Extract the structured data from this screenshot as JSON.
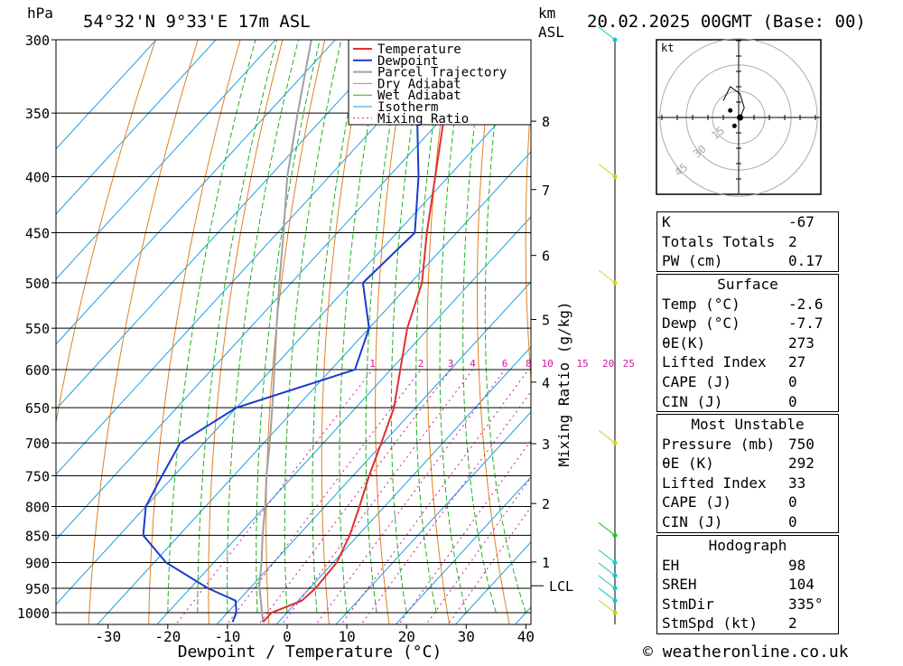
{
  "header": {
    "location": "54°32'N 9°33'E 17m ASL",
    "date": "20.02.2025 00GMT (Base: 00)",
    "pressure_unit": "hPa",
    "km_unit": "km",
    "asl_unit": "ASL"
  },
  "footer": {
    "credit": "© weatheronline.co.uk"
  },
  "chart_data": {
    "type": "skew-t",
    "xlabel": "Dewpoint / Temperature (°C)",
    "ylabel": "hPa",
    "mixing_ratio_label": "Mixing Ratio (g/kg)",
    "x_ticks": [
      -30,
      -20,
      -10,
      0,
      10,
      20,
      30,
      40
    ],
    "pressure_levels": [
      300,
      350,
      400,
      450,
      500,
      550,
      600,
      650,
      700,
      750,
      800,
      850,
      900,
      950,
      1000
    ],
    "km_ticks": [
      {
        "label": "8",
        "p": 356
      },
      {
        "label": "7",
        "p": 411
      },
      {
        "label": "6",
        "p": 472
      },
      {
        "label": "5",
        "p": 540
      },
      {
        "label": "4",
        "p": 616
      },
      {
        "label": "3",
        "p": 701
      },
      {
        "label": "2",
        "p": 795
      },
      {
        "label": "1",
        "p": 899
      }
    ],
    "lcl": {
      "label": "LCL",
      "p": 945
    },
    "mixing_ratio_values": [
      "1",
      "2",
      "3",
      "4",
      "6",
      "8",
      "10",
      "15",
      "20",
      "25"
    ],
    "legend": [
      "Temperature",
      "Dewpoint",
      "Parcel Trajectory",
      "Dry Adiabat",
      "Wet Adiabat",
      "Isotherm",
      "Mixing Ratio"
    ],
    "colors": {
      "temperature": "#e03030",
      "dewpoint": "#1a3ccc",
      "parcel": "#a0a0a0",
      "dry_adiabat": "#e08020",
      "wet_adiabat": "#20b020",
      "isotherm": "#1e9ee0",
      "mixing_ratio": "#cc1a99"
    },
    "temperature": [
      {
        "p": 1020,
        "t": -2.6
      },
      {
        "p": 1000,
        "t": -2.6
      },
      {
        "p": 975,
        "t": 0.6
      },
      {
        "p": 950,
        "t": 1.0
      },
      {
        "p": 900,
        "t": 0.6
      },
      {
        "p": 850,
        "t": -1.4
      },
      {
        "p": 800,
        "t": -4.2
      },
      {
        "p": 750,
        "t": -7.3
      },
      {
        "p": 700,
        "t": -10.3
      },
      {
        "p": 650,
        "t": -13.6
      },
      {
        "p": 600,
        "t": -18.4
      },
      {
        "p": 550,
        "t": -23.6
      },
      {
        "p": 500,
        "t": -28.1
      },
      {
        "p": 450,
        "t": -35.0
      },
      {
        "p": 400,
        "t": -42.2
      },
      {
        "p": 350,
        "t": -50.4
      },
      {
        "p": 300,
        "t": -58.9
      }
    ],
    "dewpoint": [
      {
        "p": 1020,
        "t": -7.7
      },
      {
        "p": 1000,
        "t": -8.5
      },
      {
        "p": 975,
        "t": -10.5
      },
      {
        "p": 950,
        "t": -17.0
      },
      {
        "p": 900,
        "t": -28.0
      },
      {
        "p": 850,
        "t": -36.0
      },
      {
        "p": 800,
        "t": -40.0
      },
      {
        "p": 750,
        "t": -42.0
      },
      {
        "p": 700,
        "t": -44.0
      },
      {
        "p": 650,
        "t": -40.0
      },
      {
        "p": 600,
        "t": -26.0
      },
      {
        "p": 550,
        "t": -30.0
      },
      {
        "p": 500,
        "t": -38.0
      },
      {
        "p": 450,
        "t": -37.0
      },
      {
        "p": 400,
        "t": -45.0
      },
      {
        "p": 350,
        "t": -55.0
      },
      {
        "p": 300,
        "t": -58.0
      }
    ],
    "parcel": [
      {
        "p": 1020,
        "t": -2.6
      },
      {
        "p": 945,
        "t": -8.8
      },
      {
        "p": 900,
        "t": -12.0
      },
      {
        "p": 850,
        "t": -16.0
      },
      {
        "p": 800,
        "t": -20.0
      },
      {
        "p": 750,
        "t": -24.5
      },
      {
        "p": 700,
        "t": -29.0
      },
      {
        "p": 650,
        "t": -34.0
      },
      {
        "p": 600,
        "t": -39.5
      },
      {
        "p": 550,
        "t": -45.5
      },
      {
        "p": 500,
        "t": -52.0
      },
      {
        "p": 450,
        "t": -59.0
      },
      {
        "p": 400,
        "t": -67.0
      },
      {
        "p": 350,
        "t": -75.0
      },
      {
        "p": 300,
        "t": -84.0
      }
    ],
    "hodograph": {
      "unit": "kt",
      "ring_labels": [
        "15",
        "30",
        "45"
      ],
      "trace": [
        {
          "u": 1,
          "v": 0
        },
        {
          "u": 4,
          "v": 7
        },
        {
          "u": 1,
          "v": 17
        },
        {
          "u": -6,
          "v": 22
        },
        {
          "u": -11,
          "v": 12
        }
      ],
      "storm_motion": {
        "u": 1,
        "v": 0
      },
      "marker_points": [
        {
          "u": -6,
          "v": 5
        },
        {
          "u": -3,
          "v": -6
        }
      ]
    },
    "wind_barb_levels": [
      {
        "p": 300,
        "color": "#14c8c8"
      },
      {
        "p": 400,
        "color": "#b4dc14"
      },
      {
        "p": 500,
        "color": "#dcd214"
      },
      {
        "p": 700,
        "color": "#dcd214"
      },
      {
        "p": 850,
        "color": "#14c814"
      },
      {
        "p": 900,
        "color": "#14c8c8"
      },
      {
        "p": 925,
        "color": "#14c8c8"
      },
      {
        "p": 950,
        "color": "#14c8c8"
      },
      {
        "p": 975,
        "color": "#14c8c8"
      },
      {
        "p": 1000,
        "color": "#b4dc14"
      }
    ]
  },
  "indices": {
    "general": [
      {
        "label": "K",
        "value": "-67"
      },
      {
        "label": "Totals Totals",
        "value": "2"
      },
      {
        "label": "PW (cm)",
        "value": "0.17"
      }
    ],
    "surface": {
      "title": "Surface",
      "rows": [
        {
          "label": "Temp (°C)",
          "value": "-2.6"
        },
        {
          "label": "Dewp (°C)",
          "value": "-7.7"
        },
        {
          "label": "θE(K)",
          "value": "273"
        },
        {
          "label": "Lifted Index",
          "value": "27"
        },
        {
          "label": "CAPE (J)",
          "value": "0"
        },
        {
          "label": "CIN (J)",
          "value": "0"
        }
      ]
    },
    "most_unstable": {
      "title": "Most Unstable",
      "rows": [
        {
          "label": "Pressure (mb)",
          "value": "750"
        },
        {
          "label": "θE (K)",
          "value": "292"
        },
        {
          "label": "Lifted Index",
          "value": "33"
        },
        {
          "label": "CAPE (J)",
          "value": "0"
        },
        {
          "label": "CIN (J)",
          "value": "0"
        }
      ]
    },
    "hodograph": {
      "title": "Hodograph",
      "rows": [
        {
          "label": "EH",
          "value": "98"
        },
        {
          "label": "SREH",
          "value": "104"
        },
        {
          "label": "StmDir",
          "value": "335°"
        },
        {
          "label": "StmSpd (kt)",
          "value": "2"
        }
      ]
    }
  }
}
